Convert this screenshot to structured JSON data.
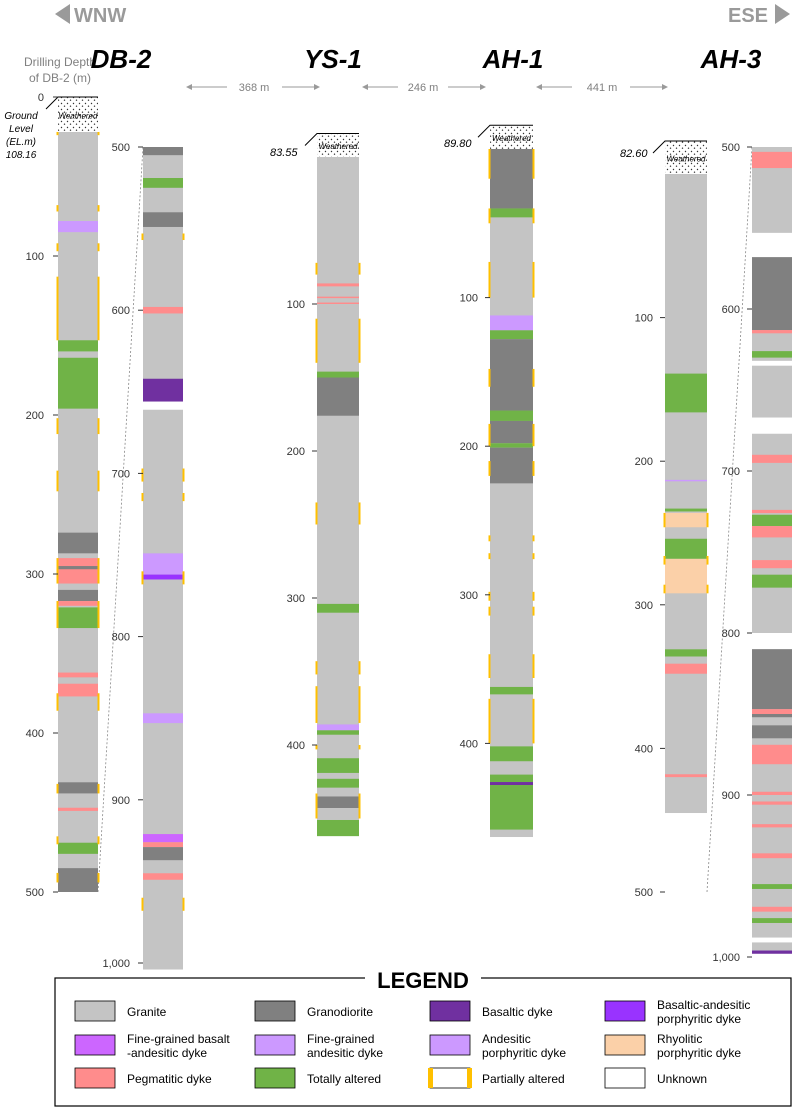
{
  "direction": {
    "left": "WNW",
    "right": "ESE",
    "arrow_color": "#9a9a9a"
  },
  "depth_axis": {
    "title_line1": "Drilling Depth",
    "title_line2": "of DB-2 (m)",
    "ground_line1": "Ground",
    "ground_line2": "Level",
    "ground_line3": "(EL.m)",
    "ground_line4": "108.16"
  },
  "distances": [
    {
      "label": "368 m"
    },
    {
      "label": "246 m"
    },
    {
      "label": "441 m"
    }
  ],
  "colors": {
    "granite": "#c4c4c4",
    "granodiorite": "#808080",
    "basaltic": "#7030a0",
    "bap": "#9933ff",
    "fgba": "#cc66ff",
    "fga": "#cc99ff",
    "ap": "#cc99ff",
    "rhy": "#fbd0a8",
    "pegm": "#ff8c8c",
    "altered": "#70b347",
    "partial": "#ffc000",
    "unknown": "#ffffff"
  },
  "weathered_label": "Weathered",
  "boreholes": [
    {
      "name": "DB-2",
      "elevation": "",
      "columns": [
        {
          "range": [
            0,
            500
          ],
          "ticks": [
            "0",
            "100",
            "200",
            "300",
            "400",
            "500"
          ],
          "tick_values": [
            0,
            100,
            200,
            300,
            400,
            500
          ],
          "weathered": [
            0,
            22
          ],
          "intervals": [
            {
              "from": 22,
              "to": 500,
              "type": "granite"
            },
            {
              "from": 78,
              "to": 85,
              "type": "fga"
            },
            {
              "from": 153,
              "to": 160,
              "type": "altered"
            },
            {
              "from": 164,
              "to": 196,
              "type": "altered"
            },
            {
              "from": 274,
              "to": 287,
              "type": "granodiorite"
            },
            {
              "from": 290,
              "to": 306,
              "type": "pegm"
            },
            {
              "from": 295,
              "to": 297,
              "type": "granodiorite"
            },
            {
              "from": 310,
              "to": 317,
              "type": "granodiorite"
            },
            {
              "from": 317,
              "to": 320,
              "type": "pegm"
            },
            {
              "from": 321,
              "to": 334,
              "type": "altered"
            },
            {
              "from": 362,
              "to": 365,
              "type": "pegm"
            },
            {
              "from": 369,
              "to": 377,
              "type": "pegm"
            },
            {
              "from": 431,
              "to": 438,
              "type": "granodiorite"
            },
            {
              "from": 447,
              "to": 449,
              "type": "pegm"
            },
            {
              "from": 469,
              "to": 476,
              "type": "altered"
            },
            {
              "from": 485,
              "to": 500,
              "type": "granodiorite"
            }
          ],
          "partial": [
            [
              22,
              24
            ],
            [
              68,
              72
            ],
            [
              92,
              97
            ],
            [
              113,
              153
            ],
            [
              202,
              212
            ],
            [
              235,
              248
            ],
            [
              290,
              306
            ],
            [
              317,
              334
            ],
            [
              375,
              386
            ],
            [
              432,
              438
            ],
            [
              465,
              470
            ],
            [
              488,
              494
            ]
          ]
        },
        {
          "range": [
            500,
            1000
          ],
          "ticks": [
            "500",
            "600",
            "700",
            "800",
            "900",
            "1,000"
          ],
          "tick_values": [
            500,
            600,
            700,
            800,
            900,
            1000
          ],
          "weathered": null,
          "intervals": [
            {
              "from": 500,
              "to": 1004,
              "type": "granite"
            },
            {
              "from": 500,
              "to": 505,
              "type": "granodiorite"
            },
            {
              "from": 519,
              "to": 525,
              "type": "altered"
            },
            {
              "from": 540,
              "to": 549,
              "type": "granodiorite"
            },
            {
              "from": 598,
              "to": 602,
              "type": "pegm"
            },
            {
              "from": 642,
              "to": 656,
              "type": "basaltic"
            },
            {
              "from": 656,
              "to": 661,
              "type": "unknown"
            },
            {
              "from": 749,
              "to": 762,
              "type": "fga"
            },
            {
              "from": 762,
              "to": 765,
              "type": "bap"
            },
            {
              "from": 847,
              "to": 853,
              "type": "fga"
            },
            {
              "from": 921,
              "to": 926,
              "type": "fgba"
            },
            {
              "from": 926,
              "to": 929,
              "type": "pegm"
            },
            {
              "from": 929,
              "to": 937,
              "type": "granodiorite"
            },
            {
              "from": 945,
              "to": 949,
              "type": "pegm"
            }
          ],
          "partial": [
            [
              553,
              557
            ],
            [
              697,
              705
            ],
            [
              712,
              717
            ],
            [
              760,
              768
            ],
            [
              960,
              968
            ]
          ]
        }
      ]
    },
    {
      "name": "YS-1",
      "elevation": "83.55",
      "columns": [
        {
          "range": [
            0,
            500
          ],
          "ticks": [
            "100",
            "200",
            "300",
            "400"
          ],
          "tick_values": [
            100,
            200,
            300,
            400
          ],
          "weathered": [
            -16,
            0
          ],
          "intervals": [
            {
              "from": 0,
              "to": 435,
              "type": "granite"
            },
            {
              "from": 86,
              "to": 88,
              "type": "pegm"
            },
            {
              "from": 95,
              "to": 96,
              "type": "pegm"
            },
            {
              "from": 99,
              "to": 100,
              "type": "pegm"
            },
            {
              "from": 146,
              "to": 150,
              "type": "altered"
            },
            {
              "from": 150,
              "to": 176,
              "type": "granodiorite"
            },
            {
              "from": 304,
              "to": 310,
              "type": "altered"
            },
            {
              "from": 386,
              "to": 390,
              "type": "fga"
            },
            {
              "from": 390,
              "to": 393,
              "type": "altered"
            },
            {
              "from": 409,
              "to": 419,
              "type": "altered"
            },
            {
              "from": 423,
              "to": 429,
              "type": "altered"
            },
            {
              "from": 435,
              "to": 443,
              "type": "granodiorite"
            },
            {
              "from": 443,
              "to": 451,
              "type": "granite"
            },
            {
              "from": 451,
              "to": 462,
              "type": "altered"
            }
          ],
          "partial": [
            [
              72,
              80
            ],
            [
              110,
              140
            ],
            [
              235,
              250
            ],
            [
              343,
              352
            ],
            [
              360,
              385
            ],
            [
              400,
              403
            ],
            [
              433,
              450
            ]
          ]
        }
      ]
    },
    {
      "name": "AH-1",
      "elevation": "89.80",
      "columns": [
        {
          "range": [
            0,
            500
          ],
          "ticks": [
            "100",
            "200",
            "300",
            "400"
          ],
          "tick_values": [
            100,
            200,
            300,
            400
          ],
          "weathered": [
            -16,
            0
          ],
          "intervals": [
            {
              "from": 0,
              "to": 463,
              "type": "granite"
            },
            {
              "from": 0,
              "to": 40,
              "type": "granodiorite"
            },
            {
              "from": 40,
              "to": 46,
              "type": "altered"
            },
            {
              "from": 112,
              "to": 122,
              "type": "fga"
            },
            {
              "from": 122,
              "to": 128,
              "type": "altered"
            },
            {
              "from": 128,
              "to": 176,
              "type": "granodiorite"
            },
            {
              "from": 176,
              "to": 183,
              "type": "altered"
            },
            {
              "from": 183,
              "to": 198,
              "type": "granodiorite"
            },
            {
              "from": 198,
              "to": 201,
              "type": "altered"
            },
            {
              "from": 201,
              "to": 225,
              "type": "granodiorite"
            },
            {
              "from": 362,
              "to": 367,
              "type": "altered"
            },
            {
              "from": 402,
              "to": 412,
              "type": "altered"
            },
            {
              "from": 421,
              "to": 426,
              "type": "altered"
            },
            {
              "from": 426,
              "to": 428,
              "type": "basaltic"
            },
            {
              "from": 428,
              "to": 458,
              "type": "altered"
            }
          ],
          "partial": [
            [
              0,
              20
            ],
            [
              40,
              50
            ],
            [
              76,
              100
            ],
            [
              148,
              160
            ],
            [
              185,
              200
            ],
            [
              210,
              220
            ],
            [
              260,
              264
            ],
            [
              272,
              276
            ],
            [
              298,
              304
            ],
            [
              308,
              314
            ],
            [
              340,
              356
            ],
            [
              370,
              400
            ]
          ]
        }
      ]
    },
    {
      "name": "AH-3",
      "elevation": "82.60",
      "columns": [
        {
          "range": [
            0,
            500
          ],
          "ticks": [
            "100",
            "200",
            "300",
            "400",
            "500"
          ],
          "tick_values": [
            100,
            200,
            300,
            400,
            500
          ],
          "weathered": [
            -23,
            0
          ],
          "intervals": [
            {
              "from": 0,
              "to": 445,
              "type": "granite"
            },
            {
              "from": 139,
              "to": 166,
              "type": "altered"
            },
            {
              "from": 213,
              "to": 214,
              "type": "fga"
            },
            {
              "from": 233,
              "to": 235,
              "type": "altered"
            },
            {
              "from": 236,
              "to": 246,
              "type": "rhy"
            },
            {
              "from": 254,
              "to": 268,
              "type": "altered"
            },
            {
              "from": 268,
              "to": 292,
              "type": "rhy"
            },
            {
              "from": 331,
              "to": 336,
              "type": "altered"
            },
            {
              "from": 341,
              "to": 348,
              "type": "pegm"
            },
            {
              "from": 418,
              "to": 420,
              "type": "pegm"
            }
          ],
          "partial": [
            [
              236,
              246
            ],
            [
              266,
              272
            ],
            [
              286,
              292
            ]
          ]
        },
        {
          "range": [
            500,
            1000
          ],
          "ticks": [
            "500",
            "600",
            "700",
            "800",
            "900",
            "1,000"
          ],
          "tick_values": [
            500,
            600,
            700,
            800,
            900,
            1000
          ],
          "weathered": null,
          "intervals": [
            {
              "from": 500,
              "to": 996,
              "type": "granite"
            },
            {
              "from": 503,
              "to": 513,
              "type": "pegm"
            },
            {
              "from": 553,
              "to": 568,
              "type": "unknown"
            },
            {
              "from": 568,
              "to": 613,
              "type": "granodiorite"
            },
            {
              "from": 613,
              "to": 615,
              "type": "pegm"
            },
            {
              "from": 626,
              "to": 630,
              "type": "altered"
            },
            {
              "from": 632,
              "to": 635,
              "type": "unknown"
            },
            {
              "from": 667,
              "to": 677,
              "type": "unknown"
            },
            {
              "from": 690,
              "to": 695,
              "type": "pegm"
            },
            {
              "from": 724,
              "to": 726,
              "type": "pegm"
            },
            {
              "from": 727,
              "to": 734,
              "type": "altered"
            },
            {
              "from": 734,
              "to": 741,
              "type": "pegm"
            },
            {
              "from": 755,
              "to": 760,
              "type": "pegm"
            },
            {
              "from": 764,
              "to": 772,
              "type": "altered"
            },
            {
              "from": 800,
              "to": 810,
              "type": "unknown"
            },
            {
              "from": 810,
              "to": 847,
              "type": "granodiorite"
            },
            {
              "from": 847,
              "to": 850,
              "type": "pegm"
            },
            {
              "from": 850,
              "to": 852,
              "type": "granodiorite"
            },
            {
              "from": 857,
              "to": 865,
              "type": "granodiorite"
            },
            {
              "from": 869,
              "to": 881,
              "type": "pegm"
            },
            {
              "from": 898,
              "to": 900,
              "type": "pegm"
            },
            {
              "from": 904,
              "to": 906,
              "type": "pegm"
            },
            {
              "from": 918,
              "to": 920,
              "type": "pegm"
            },
            {
              "from": 936,
              "to": 939,
              "type": "pegm"
            },
            {
              "from": 955,
              "to": 958,
              "type": "altered"
            },
            {
              "from": 969,
              "to": 972,
              "type": "pegm"
            },
            {
              "from": 976,
              "to": 979,
              "type": "altered"
            },
            {
              "from": 988,
              "to": 991,
              "type": "unknown"
            },
            {
              "from": 996,
              "to": 998,
              "type": "basaltic"
            }
          ],
          "partial": []
        }
      ]
    }
  ],
  "legend": {
    "title": "LEGEND",
    "items": [
      {
        "label1": "Granite",
        "label2": "",
        "key": "granite"
      },
      {
        "label1": "Granodiorite",
        "label2": "",
        "key": "granodiorite"
      },
      {
        "label1": "Basaltic dyke",
        "label2": "",
        "key": "basaltic"
      },
      {
        "label1": "Basaltic-andesitic",
        "label2": "porphyritic dyke",
        "key": "bap"
      },
      {
        "label1": "Fine-grained basalt",
        "label2": "-andesitic dyke",
        "key": "fgba"
      },
      {
        "label1": "Fine-grained",
        "label2": "andesitic dyke",
        "key": "fga"
      },
      {
        "label1": "Andesitic",
        "label2": "porphyritic dyke",
        "key": "ap"
      },
      {
        "label1": "Rhyolitic",
        "label2": "porphyritic dyke",
        "key": "rhy"
      },
      {
        "label1": "Pegmatitic dyke",
        "label2": "",
        "key": "pegm"
      },
      {
        "label1": "Totally altered",
        "label2": "",
        "key": "altered"
      },
      {
        "label1": "Partially altered",
        "label2": "",
        "key": "partial"
      },
      {
        "label1": "Unknown",
        "label2": "",
        "key": "unknown"
      }
    ]
  }
}
